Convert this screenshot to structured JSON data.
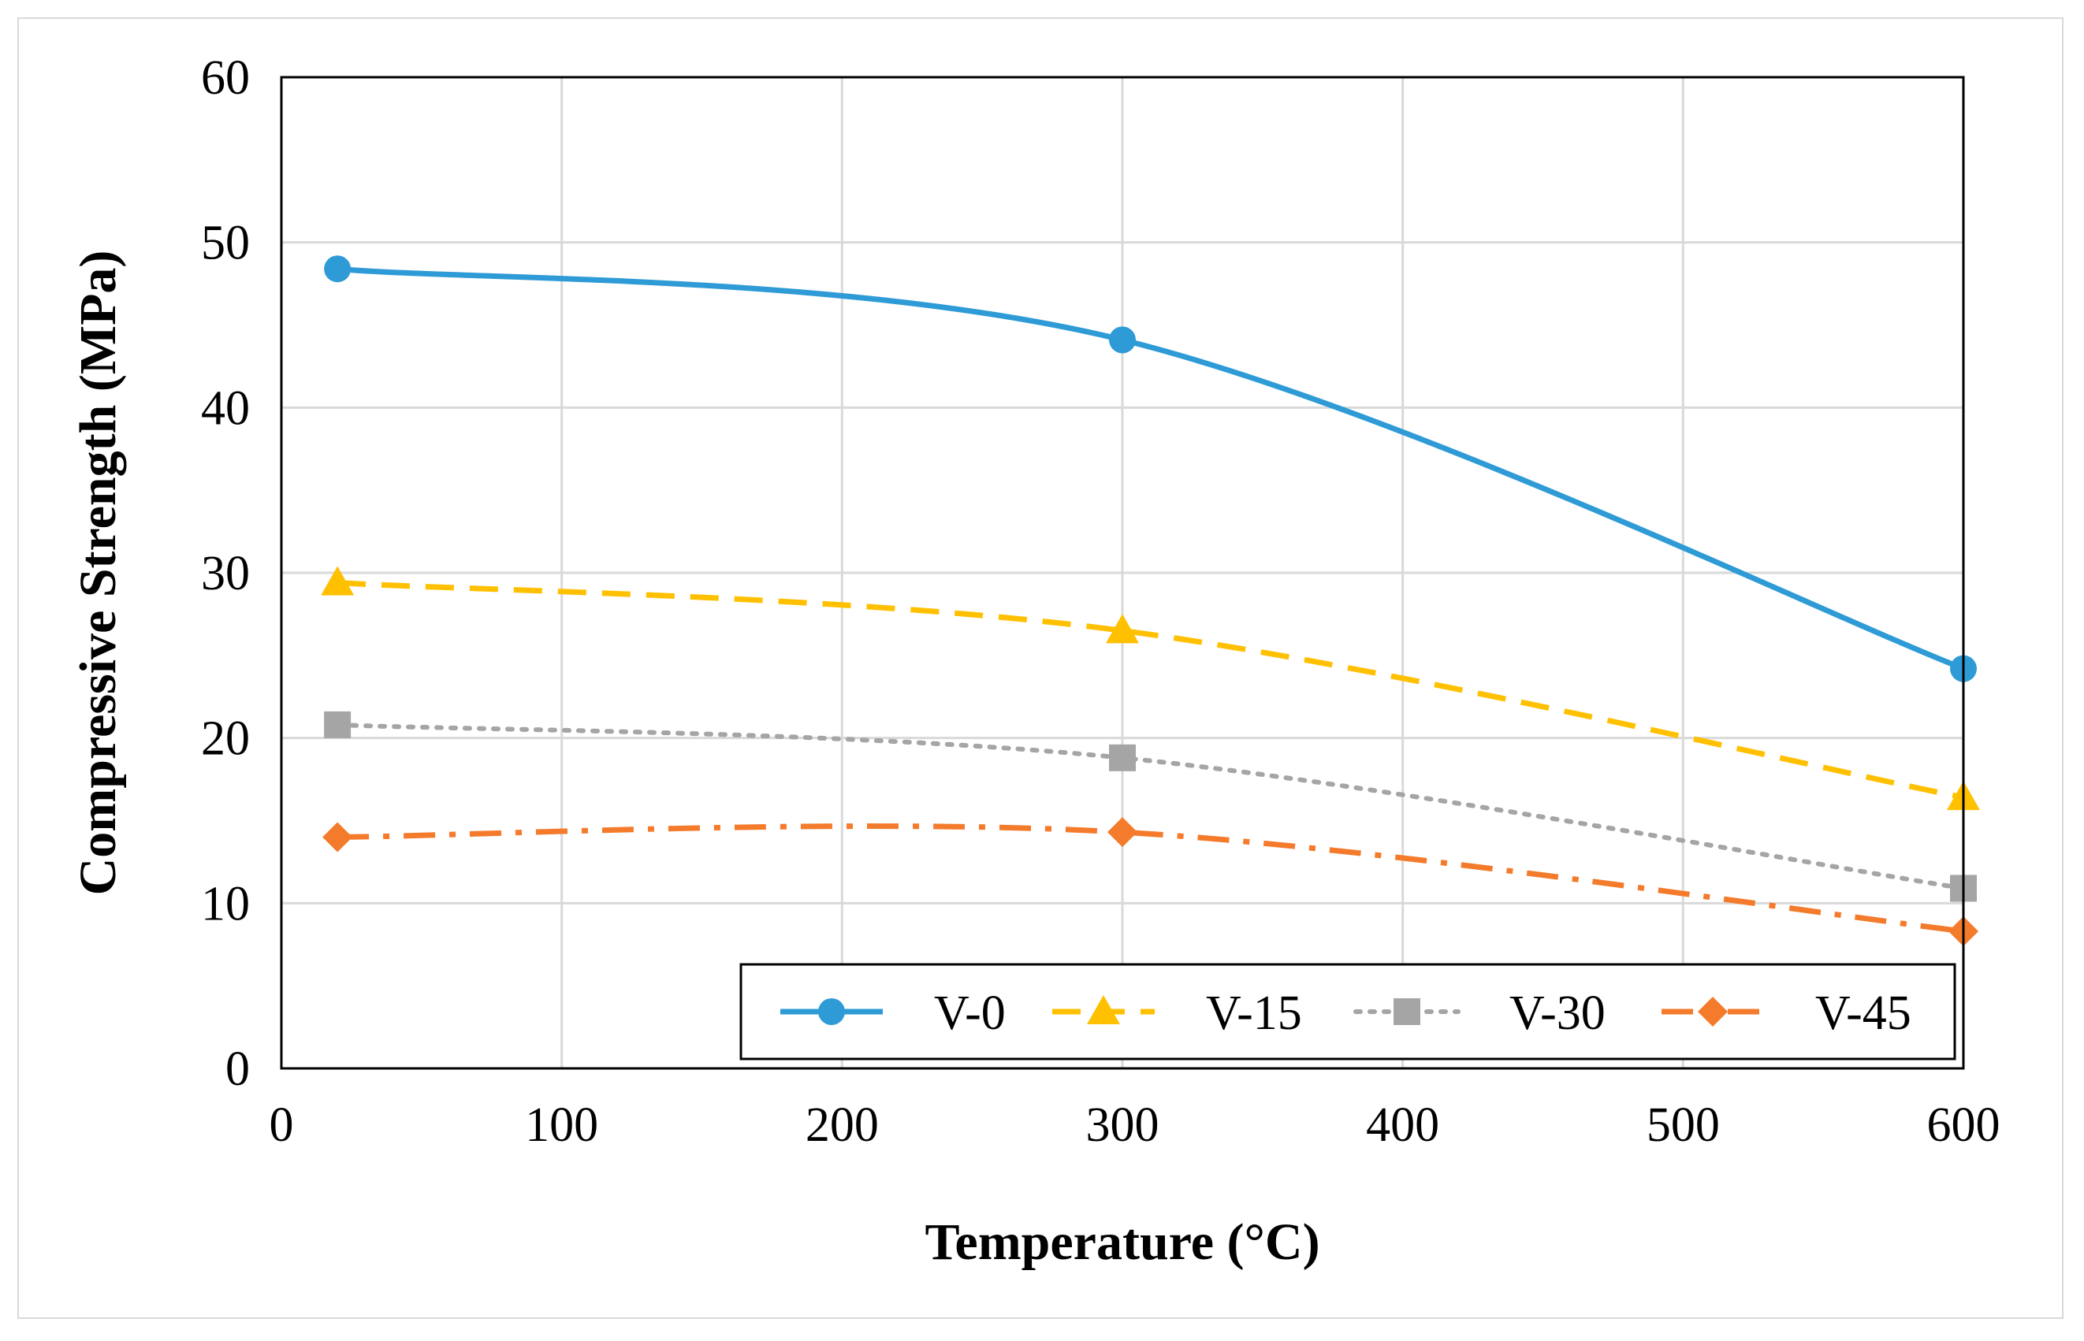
{
  "chart_data": {
    "type": "line",
    "title": "",
    "xlabel": "Temperature (°C)",
    "ylabel": "Compressive Strength (MPa)",
    "xlim": [
      0,
      600
    ],
    "ylim": [
      0,
      60
    ],
    "xticks": [
      "0",
      "100",
      "200",
      "300",
      "400",
      "500",
      "600"
    ],
    "yticks": [
      "0",
      "10",
      "20",
      "30",
      "40",
      "50",
      "60"
    ],
    "grid": true,
    "legend_position": "bottom-right",
    "x": [
      20,
      300,
      600
    ],
    "series": [
      {
        "name": "V-0",
        "values": [
          48.4,
          44.1,
          24.2
        ],
        "color": "#2e9bd6",
        "marker": "circle",
        "dash": "solid"
      },
      {
        "name": "V-15",
        "values": [
          29.4,
          26.5,
          16.4
        ],
        "color": "#ffc000",
        "marker": "triangle",
        "dash": "dash"
      },
      {
        "name": "V-30",
        "values": [
          20.8,
          18.8,
          10.9
        ],
        "color": "#a5a5a5",
        "marker": "square",
        "dash": "dot"
      },
      {
        "name": "V-45",
        "values": [
          14.0,
          14.3,
          8.3
        ],
        "color": "#f47b2c",
        "marker": "diamond",
        "dash": "dashdot"
      }
    ]
  }
}
